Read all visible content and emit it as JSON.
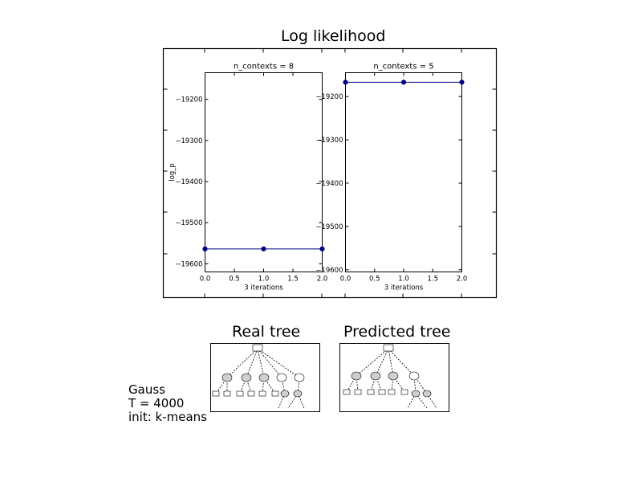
{
  "figure_title": "Log likelihood",
  "chart_data": [
    {
      "type": "line",
      "title": "n_contexts = 8",
      "xlabel": "3 iterations",
      "ylabel": "log_p",
      "x": [
        0.0,
        1.0,
        2.0
      ],
      "series": [
        {
          "values": [
            -19564,
            -19564,
            -19564
          ],
          "color": "#000080"
        }
      ],
      "xlim": [
        0.0,
        2.0
      ],
      "ylim": [
        -19620,
        -19135
      ],
      "xticks": [
        0.0,
        0.5,
        1.0,
        1.5,
        2.0
      ],
      "xtick_labels": [
        "0.0",
        "0.5",
        "1.0",
        "1.5",
        "2.0"
      ],
      "yticks": [
        -19200,
        -19300,
        -19400,
        -19500,
        -19600
      ],
      "ytick_labels": [
        "−19200",
        "−19300",
        "−19400",
        "−19500",
        "−19600"
      ],
      "grid": false
    },
    {
      "type": "line",
      "title": "n_contexts = 5",
      "xlabel": "3 iterations",
      "ylabel": "",
      "x": [
        0.0,
        1.0,
        2.0
      ],
      "series": [
        {
          "values": [
            -19167,
            -19167,
            -19167
          ],
          "color": "#000080"
        }
      ],
      "xlim": [
        0.0,
        2.0
      ],
      "ylim": [
        -19605,
        -19145
      ],
      "xticks": [
        0.0,
        0.5,
        1.0,
        1.5,
        2.0
      ],
      "xtick_labels": [
        "0.0",
        "0.5",
        "1.0",
        "1.5",
        "2.0"
      ],
      "yticks": [
        -19200,
        -19300,
        -19400,
        -19500,
        -19600
      ],
      "ytick_labels": [
        "−19200",
        "−19300",
        "−19400",
        "−19500",
        "−19600"
      ],
      "grid": false
    }
  ],
  "trees": [
    {
      "title": "Real tree"
    },
    {
      "title": "Predicted tree"
    }
  ],
  "info": {
    "line1": "Gauss",
    "line2": "T = 4000",
    "line3": "init: k-means"
  }
}
